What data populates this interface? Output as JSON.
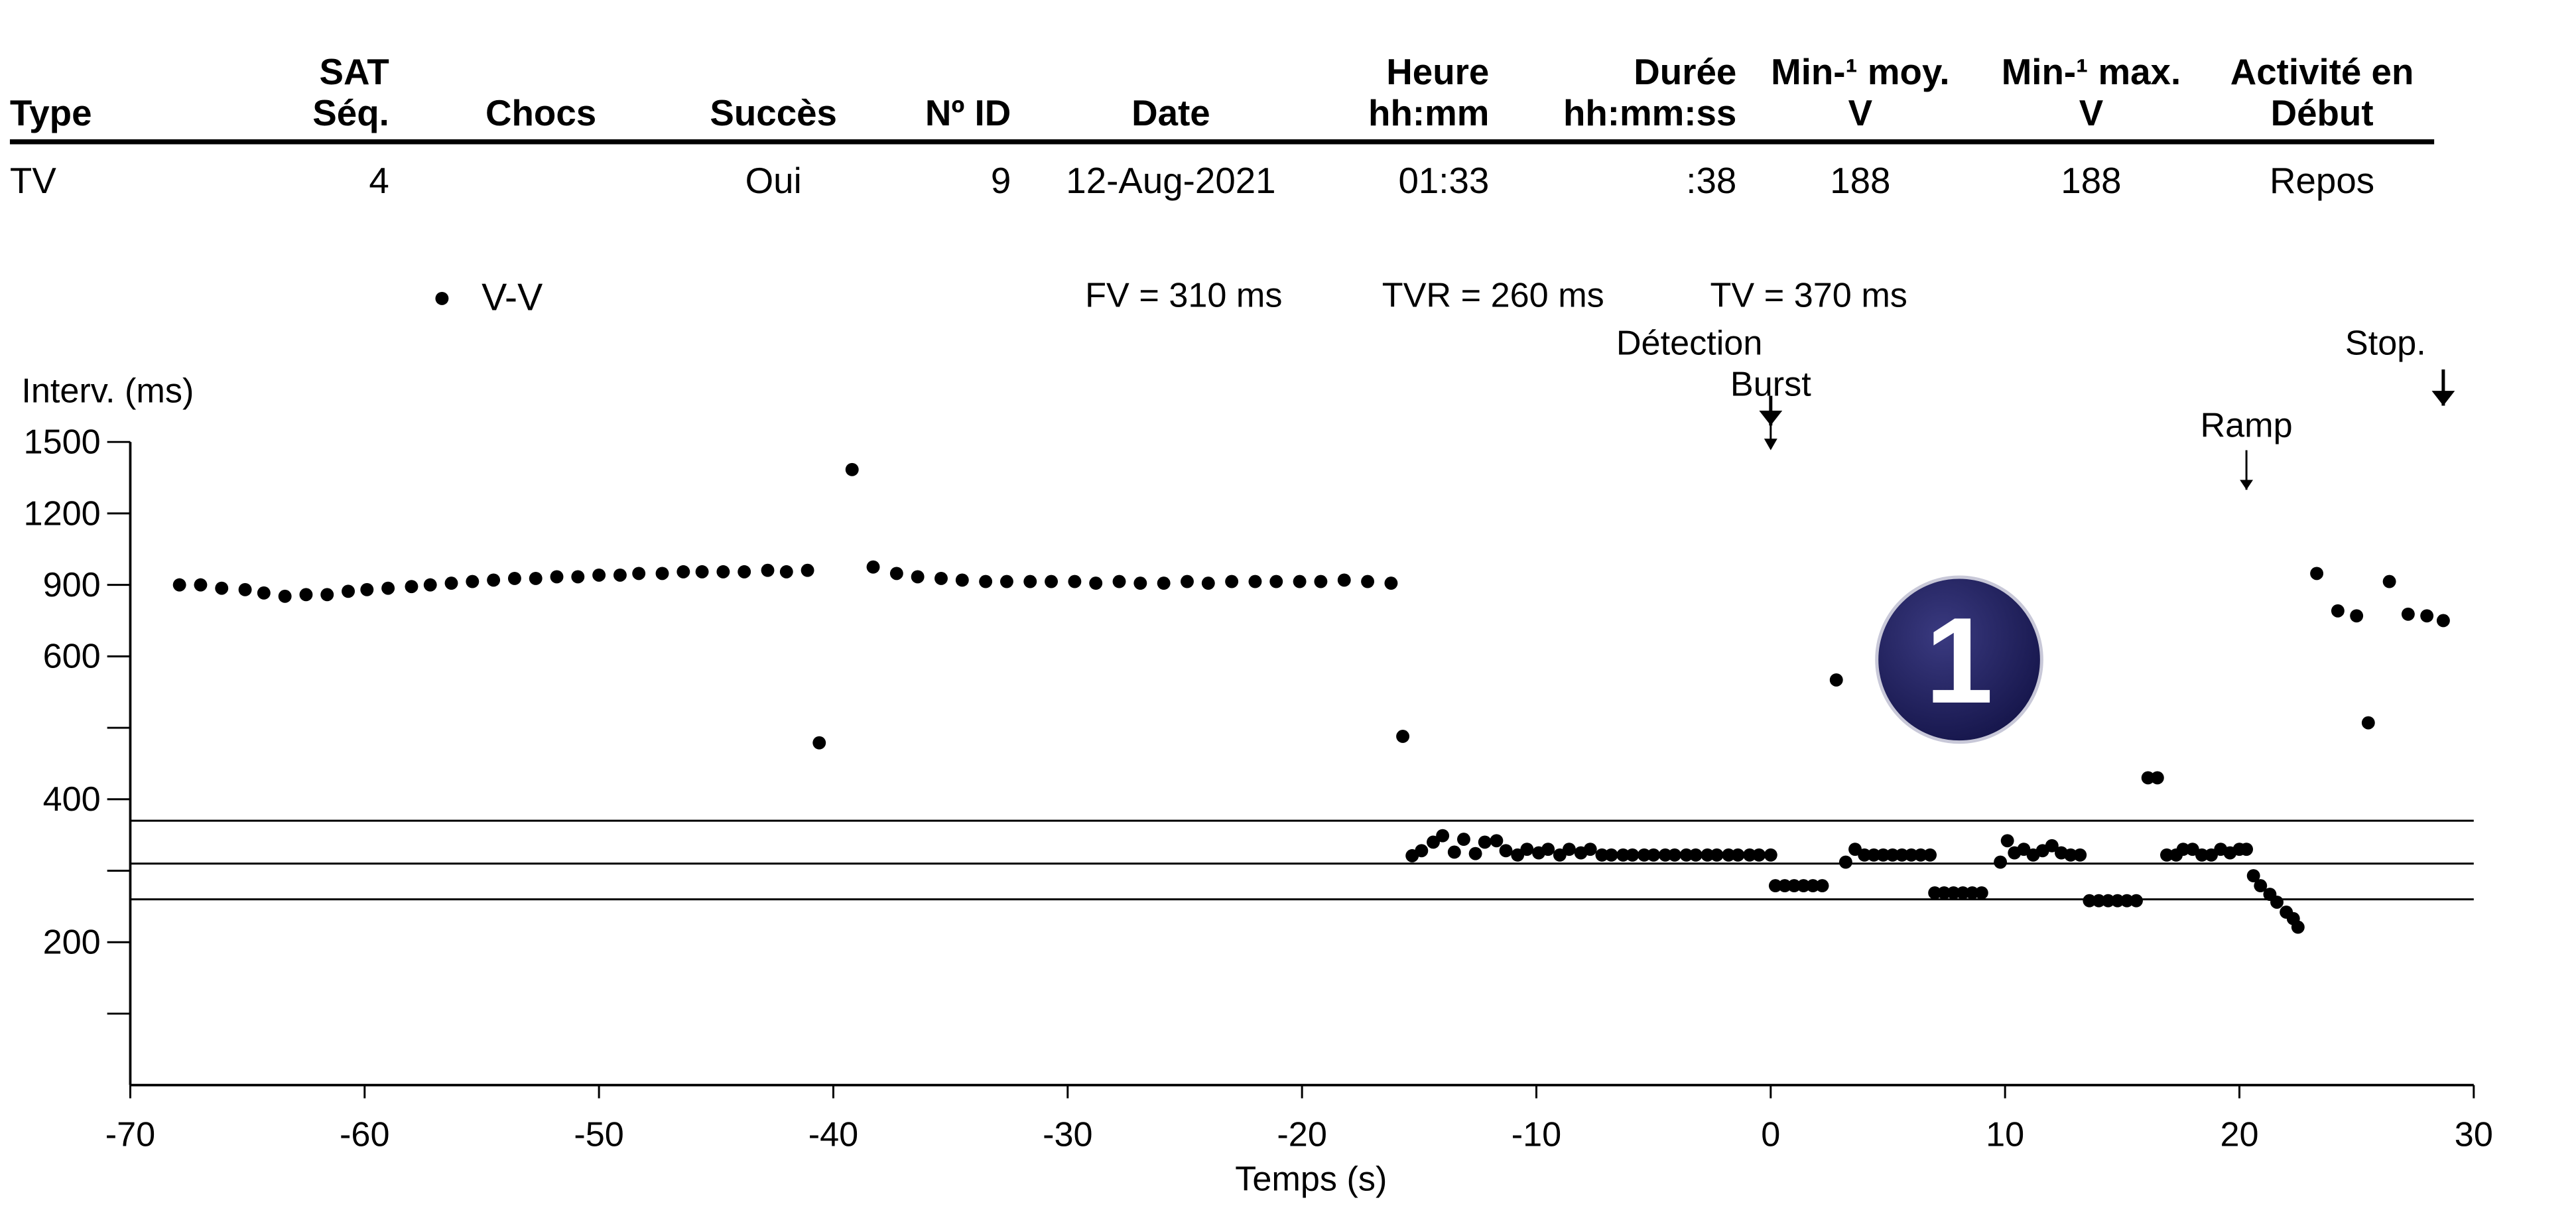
{
  "table": {
    "headers": [
      [
        "Type"
      ],
      [
        "SAT",
        "Séq."
      ],
      [
        "Chocs"
      ],
      [
        "Succès"
      ],
      [
        "Nº ID"
      ],
      [
        "Date"
      ],
      [
        "Heure",
        "hh:mm"
      ],
      [
        "Durée",
        "hh:mm:ss"
      ],
      [
        "Min-¹ moy.",
        "V"
      ],
      [
        "Min-¹ max.",
        "V"
      ],
      [
        "Activité en",
        "Début"
      ]
    ],
    "row": [
      "TV",
      "4",
      null,
      "Oui",
      "9",
      "12-Aug-2021",
      "01:33",
      ":38",
      "188",
      "188",
      "Repos"
    ]
  },
  "badge": "1",
  "chart_data": {
    "type": "scatter",
    "xlabel": "Temps (s)",
    "ylabel": "Interv. (ms)",
    "xlim": [
      -70,
      30
    ],
    "xticks": [
      -70,
      -60,
      -50,
      -40,
      -30,
      -20,
      -10,
      0,
      10,
      20,
      30
    ],
    "ylim": [
      0,
      1500
    ],
    "yticks": [
      {
        "value": 100,
        "label": null
      },
      200,
      {
        "value": 300,
        "label": null
      },
      400,
      {
        "value": 500,
        "label": null
      },
      600,
      900,
      1200,
      1500
    ],
    "reference_lines": [
      {
        "label": "FV = 310 ms",
        "value": 310
      },
      {
        "label": "TVR = 260 ms",
        "value": 260
      },
      {
        "label": "TV = 370 ms",
        "value": 370
      }
    ],
    "events": [
      {
        "label": "Détection",
        "x": 0
      },
      {
        "label": "Burst",
        "x": 0
      },
      {
        "label": "Ramp",
        "x": 20.3
      },
      {
        "label": "Stop.",
        "x": 28.7
      }
    ],
    "series": [
      {
        "name": "V-V",
        "color": "#000000",
        "x": [
          -67.9,
          -67.0,
          -66.1,
          -65.1,
          -64.3,
          -63.4,
          -62.5,
          -61.6,
          -60.7,
          -59.9,
          -59.0,
          -58.0,
          -57.2,
          -56.3,
          -55.4,
          -54.5,
          -53.6,
          -52.7,
          -51.8,
          -50.9,
          -50.0,
          -49.1,
          -48.3,
          -47.3,
          -46.4,
          -45.6,
          -44.7,
          -43.8,
          -42.8,
          -42.0,
          -41.1,
          -40.6,
          -39.2,
          -38.3,
          -37.3,
          -36.4,
          -35.4,
          -34.5,
          -33.5,
          -32.6,
          -31.6,
          -30.7,
          -29.7,
          -28.8,
          -27.8,
          -26.9,
          -25.9,
          -24.9,
          -24.0,
          -23.0,
          -22.0,
          -21.1,
          -20.1,
          -19.2,
          -18.2,
          -17.2,
          -16.2,
          -15.7,
          -15.3,
          -14.9,
          -14.4,
          -14.0,
          -13.5,
          -13.1,
          -12.6,
          -12.2,
          -11.7,
          -11.3,
          -10.8,
          -10.4,
          -9.9,
          -9.5,
          -9.0,
          -8.6,
          -8.1,
          -7.7,
          -7.2,
          -6.8,
          -6.3,
          -5.9,
          -5.4,
          -5.0,
          -4.5,
          -4.1,
          -3.6,
          -3.2,
          -2.7,
          -2.3,
          -1.8,
          -1.4,
          -0.9,
          -0.5,
          0.0,
          0.2,
          0.6,
          1.0,
          1.4,
          1.8,
          2.2,
          2.8,
          3.2,
          3.6,
          4.0,
          4.4,
          4.8,
          5.2,
          5.6,
          6.0,
          6.4,
          6.8,
          7.0,
          7.4,
          7.8,
          8.2,
          8.6,
          9.0,
          9.8,
          10.1,
          10.4,
          10.8,
          11.2,
          11.6,
          12.0,
          12.4,
          12.8,
          13.2,
          13.6,
          14.0,
          14.4,
          14.8,
          15.2,
          15.6,
          16.1,
          16.5,
          16.9,
          17.3,
          17.6,
          18.0,
          18.4,
          18.8,
          19.2,
          19.6,
          20.0,
          20.3,
          20.6,
          20.9,
          21.3,
          21.6,
          22.0,
          22.3,
          22.5,
          23.3,
          24.2,
          25.0,
          25.5,
          26.4,
          27.2,
          28.0,
          28.7
        ],
        "values": [
          900,
          900,
          886,
          880,
          866,
          852,
          859,
          859,
          873,
          880,
          886,
          893,
          900,
          907,
          914,
          920,
          927,
          927,
          934,
          934,
          941,
          941,
          948,
          948,
          955,
          955,
          955,
          955,
          961,
          955,
          961,
          479,
          1384,
          975,
          948,
          934,
          927,
          920,
          914,
          914,
          914,
          914,
          914,
          907,
          914,
          907,
          907,
          914,
          907,
          914,
          914,
          914,
          914,
          914,
          920,
          914,
          907,
          488,
          321,
          328,
          340,
          349,
          326,
          344,
          324,
          340,
          342,
          328,
          322,
          330,
          325,
          330,
          322,
          330,
          325,
          330,
          322,
          322,
          322,
          322,
          322,
          322,
          322,
          322,
          322,
          322,
          322,
          322,
          322,
          322,
          322,
          322,
          322,
          279,
          279,
          279,
          279,
          279,
          279,
          567,
          312,
          330,
          322,
          322,
          322,
          322,
          322,
          322,
          322,
          322,
          269,
          269,
          269,
          269,
          269,
          269,
          312,
          342,
          325,
          330,
          322,
          328,
          335,
          325,
          322,
          322,
          258,
          258,
          258,
          258,
          258,
          258,
          430,
          430,
          322,
          322,
          330,
          330,
          322,
          322,
          330,
          325,
          330,
          330,
          293,
          279,
          267,
          256,
          242,
          233,
          221,
          948,
          791,
          770,
          507,
          914,
          777,
          770,
          750
        ]
      }
    ]
  }
}
